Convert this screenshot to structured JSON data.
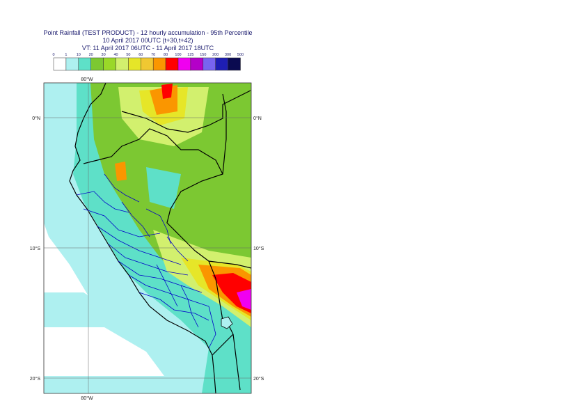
{
  "title": {
    "line1": "Point Rainfall (TEST PRODUCT) - 12 hourly accumulation - 95th Percentile",
    "line2": "10 April 2017 00UTC (t+30,t+42)",
    "line3": "VT: 11 April 2017 06UTC - 11 April 2017 18UTC"
  },
  "legend": {
    "thresholds": [
      "0",
      "1",
      "10",
      "20",
      "30",
      "40",
      "50",
      "60",
      "70",
      "80",
      "100",
      "125",
      "150",
      "200",
      "300",
      "500"
    ],
    "colors": [
      "#ffffff",
      "#aef0f0",
      "#5ee0c8",
      "#7cc832",
      "#9ad828",
      "#d2f06e",
      "#e6e628",
      "#f0c832",
      "#fa9600",
      "#ff0000",
      "#f000f0",
      "#b400c8",
      "#7864f0",
      "#1e1eb4",
      "#0a0a50"
    ]
  },
  "map": {
    "lat_labels": [
      "0°N",
      "10°S",
      "20°S"
    ],
    "lon_labels_top": [
      "80°W"
    ],
    "lon_labels_bottom": [
      "80°W"
    ]
  }
}
